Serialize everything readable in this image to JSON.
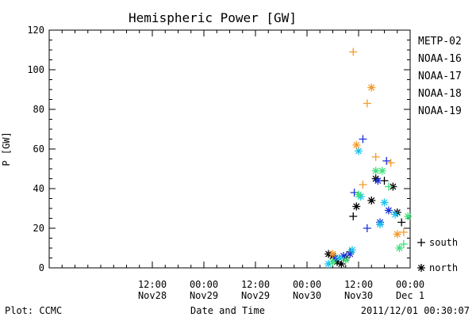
{
  "chart_data": {
    "type": "scatter",
    "title": "Hemispheric Power [GW]",
    "xlabel": "Date and Time",
    "ylabel": "P [GW]",
    "xlim": [
      "2011-11-27T12:00",
      "2011-12-01T00:00"
    ],
    "ylim": [
      0,
      120
    ],
    "grid": false,
    "legend_placement": "right",
    "y_ticks": [
      {
        "value": 0,
        "label": "0"
      },
      {
        "value": 20,
        "label": "20"
      },
      {
        "value": 40,
        "label": "40"
      },
      {
        "value": 60,
        "label": "60"
      },
      {
        "value": 80,
        "label": "80"
      },
      {
        "value": 100,
        "label": "100"
      },
      {
        "value": 120,
        "label": "120"
      }
    ],
    "x_ticks": [
      {
        "x": "2011-11-28T12:00",
        "time": "12:00",
        "date": "Nov28"
      },
      {
        "x": "2011-11-29T00:00",
        "time": "00:00",
        "date": "Nov29"
      },
      {
        "x": "2011-11-29T12:00",
        "time": "12:00",
        "date": "Nov29"
      },
      {
        "x": "2011-11-30T00:00",
        "time": "00:00",
        "date": "Nov30"
      },
      {
        "x": "2011-11-30T12:00",
        "time": "12:00",
        "date": "Nov30"
      },
      {
        "x": "2011-12-01T00:00",
        "time": "00:00",
        "date": "Dec 1"
      }
    ],
    "series": [
      {
        "name": "METP-02",
        "color": "#000000",
        "points": [
          {
            "x": "2011-11-30T05:00",
            "y": 7,
            "hemisphere": "north"
          },
          {
            "x": "2011-11-30T06:00",
            "y": 6,
            "hemisphere": "north"
          },
          {
            "x": "2011-11-30T07:00",
            "y": 3,
            "hemisphere": "north"
          },
          {
            "x": "2011-11-30T08:00",
            "y": 2,
            "hemisphere": "north"
          },
          {
            "x": "2011-11-30T09:00",
            "y": 5,
            "hemisphere": "north"
          },
          {
            "x": "2011-11-30T10:00",
            "y": 8,
            "hemisphere": "south"
          },
          {
            "x": "2011-11-30T10:45",
            "y": 26,
            "hemisphere": "south"
          },
          {
            "x": "2011-11-30T11:30",
            "y": 31,
            "hemisphere": "north"
          },
          {
            "x": "2011-11-30T15:00",
            "y": 34,
            "hemisphere": "north"
          },
          {
            "x": "2011-11-30T16:00",
            "y": 45,
            "hemisphere": "north"
          },
          {
            "x": "2011-11-30T18:00",
            "y": 44,
            "hemisphere": "south"
          },
          {
            "x": "2011-11-30T20:00",
            "y": 41,
            "hemisphere": "north"
          },
          {
            "x": "2011-11-30T21:00",
            "y": 28,
            "hemisphere": "north"
          },
          {
            "x": "2011-11-30T22:00",
            "y": 23,
            "hemisphere": "south"
          }
        ]
      },
      {
        "name": "NOAA-16",
        "color": "#1a2fd6",
        "points": [
          {
            "x": "2011-11-30T06:30",
            "y": 5,
            "hemisphere": "north"
          },
          {
            "x": "2011-11-30T08:30",
            "y": 6,
            "hemisphere": "north"
          },
          {
            "x": "2011-11-30T10:00",
            "y": 7,
            "hemisphere": "north"
          },
          {
            "x": "2011-11-30T11:00",
            "y": 38,
            "hemisphere": "south"
          },
          {
            "x": "2011-11-30T13:00",
            "y": 65,
            "hemisphere": "south"
          },
          {
            "x": "2011-11-30T14:00",
            "y": 20,
            "hemisphere": "south"
          },
          {
            "x": "2011-11-30T16:30",
            "y": 44,
            "hemisphere": "north"
          },
          {
            "x": "2011-11-30T17:00",
            "y": 23,
            "hemisphere": "north"
          },
          {
            "x": "2011-11-30T18:30",
            "y": 54,
            "hemisphere": "south"
          },
          {
            "x": "2011-11-30T19:00",
            "y": 29,
            "hemisphere": "north"
          }
        ]
      },
      {
        "name": "NOAA-17",
        "color": "#18c3ee",
        "points": [
          {
            "x": "2011-11-30T05:00",
            "y": 2,
            "hemisphere": "north"
          },
          {
            "x": "2011-11-30T07:30",
            "y": 5,
            "hemisphere": "north"
          },
          {
            "x": "2011-11-30T10:30",
            "y": 9,
            "hemisphere": "north"
          },
          {
            "x": "2011-11-30T12:00",
            "y": 59,
            "hemisphere": "north"
          },
          {
            "x": "2011-11-30T12:30",
            "y": 36,
            "hemisphere": "north"
          },
          {
            "x": "2011-11-30T17:00",
            "y": 22,
            "hemisphere": "north"
          },
          {
            "x": "2011-11-30T18:00",
            "y": 33,
            "hemisphere": "north"
          },
          {
            "x": "2011-11-30T20:30",
            "y": 27,
            "hemisphere": "north"
          }
        ]
      },
      {
        "name": "NOAA-18",
        "color": "#3fe07a",
        "points": [
          {
            "x": "2011-11-30T06:00",
            "y": 3,
            "hemisphere": "north"
          },
          {
            "x": "2011-11-30T09:00",
            "y": 4,
            "hemisphere": "north"
          },
          {
            "x": "2011-11-30T12:00",
            "y": 37,
            "hemisphere": "north"
          },
          {
            "x": "2011-11-30T16:00",
            "y": 49,
            "hemisphere": "north"
          },
          {
            "x": "2011-11-30T17:30",
            "y": 49,
            "hemisphere": "north"
          },
          {
            "x": "2011-11-30T19:00",
            "y": 41,
            "hemisphere": "south"
          },
          {
            "x": "2011-11-30T21:30",
            "y": 10,
            "hemisphere": "north"
          },
          {
            "x": "2011-11-30T22:30",
            "y": 12,
            "hemisphere": "south"
          },
          {
            "x": "2011-11-30T23:30",
            "y": 26,
            "hemisphere": "north"
          }
        ]
      },
      {
        "name": "NOAA-19",
        "color": "#f59a28",
        "points": [
          {
            "x": "2011-11-30T06:00",
            "y": 7,
            "hemisphere": "north"
          },
          {
            "x": "2011-11-30T10:45",
            "y": 109,
            "hemisphere": "south"
          },
          {
            "x": "2011-11-30T11:30",
            "y": 62,
            "hemisphere": "north"
          },
          {
            "x": "2011-11-30T13:00",
            "y": 42,
            "hemisphere": "south"
          },
          {
            "x": "2011-11-30T14:00",
            "y": 83,
            "hemisphere": "south"
          },
          {
            "x": "2011-11-30T15:00",
            "y": 91,
            "hemisphere": "north"
          },
          {
            "x": "2011-11-30T16:00",
            "y": 56,
            "hemisphere": "south"
          },
          {
            "x": "2011-11-30T19:30",
            "y": 53,
            "hemisphere": "south"
          },
          {
            "x": "2011-11-30T21:00",
            "y": 17,
            "hemisphere": "north"
          },
          {
            "x": "2011-11-30T22:30",
            "y": 18,
            "hemisphere": "south"
          }
        ]
      }
    ],
    "hemisphere_legend": [
      {
        "symbol": "+",
        "label": "south"
      },
      {
        "symbol": "*",
        "label": "north"
      }
    ]
  },
  "footer": {
    "plot_credit": "Plot: CCMC",
    "timestamp": "2011/12/01 00:30:07"
  }
}
